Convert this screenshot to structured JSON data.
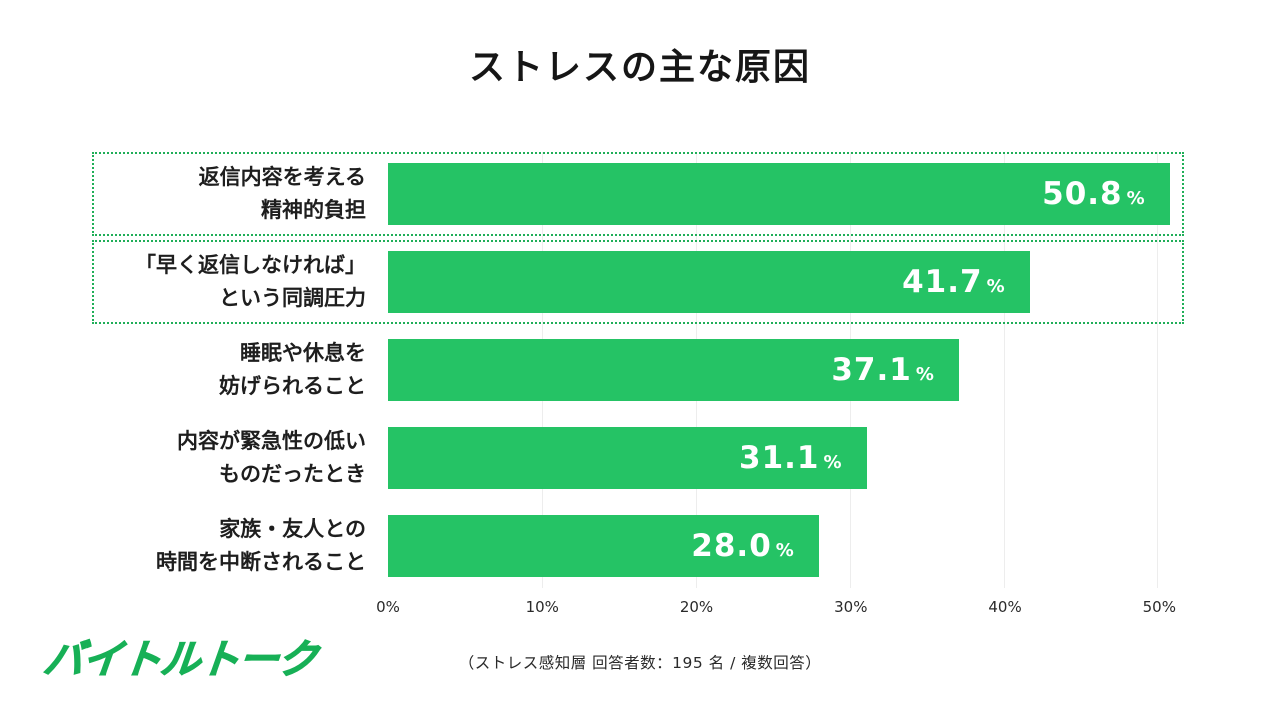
{
  "title": "ストレスの主な原因",
  "footnote": "（ストレス感知層 回答者数：195 名 / 複数回答）",
  "logo": {
    "text": "バイトルトーク"
  },
  "colors": {
    "bar": "#25c365",
    "highlight_border": "#1fae58",
    "logo": "#17b056",
    "value_text": "#ffffff"
  },
  "chart_data": {
    "type": "bar",
    "orientation": "horizontal",
    "title": "ストレスの主な原因",
    "xlabel": "",
    "ylabel": "",
    "xlim": [
      0,
      51.6
    ],
    "axis_max": 51.6,
    "grid": true,
    "percent_suffix": "%",
    "ticks": [
      {
        "value": 0,
        "label": "0%"
      },
      {
        "value": 10,
        "label": "10%"
      },
      {
        "value": 20,
        "label": "20%"
      },
      {
        "value": 30,
        "label": "30%"
      },
      {
        "value": 40,
        "label": "40%"
      },
      {
        "value": 50,
        "label": "50%"
      }
    ],
    "rows": [
      {
        "label": "返信内容を考える\n精神的負担",
        "value": 50.8,
        "display": "50.8",
        "highlight": true
      },
      {
        "label": "「早く返信しなければ」\nという同調圧力",
        "value": 41.7,
        "display": "41.7",
        "highlight": true
      },
      {
        "label": "睡眠や休息を\n妨げられること",
        "value": 37.1,
        "display": "37.1",
        "highlight": false
      },
      {
        "label": "内容が緊急性の低い\nものだったとき",
        "value": 31.1,
        "display": "31.1",
        "highlight": false
      },
      {
        "label": "家族・友人との\n時間を中断されること",
        "value": 28.0,
        "display": "28.0",
        "highlight": false
      }
    ],
    "legend": null,
    "footnote": "（ストレス感知層 回答者数：195 名 / 複数回答）"
  }
}
